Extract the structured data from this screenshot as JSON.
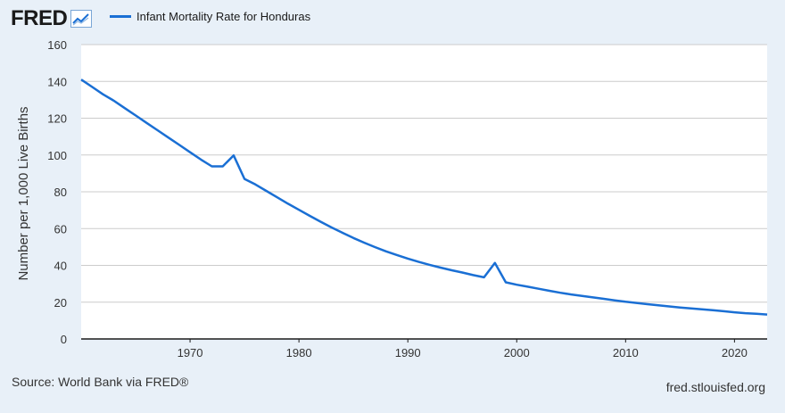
{
  "header": {
    "logo": "FRED",
    "legend_label": "Infant Mortality Rate for Honduras"
  },
  "footer": {
    "source": "Source: World Bank via FRED®",
    "site": "fred.stlouisfed.org"
  },
  "colors": {
    "background": "#e8f0f8",
    "plot_background": "#ffffff",
    "series": "#1a6fd4",
    "grid": "#cccccc"
  },
  "chart_data": {
    "type": "line",
    "title": "",
    "xlabel": "",
    "ylabel": "Number per 1,000 Live Births",
    "xlim": [
      1960,
      2023
    ],
    "ylim": [
      0,
      160
    ],
    "yticks": [
      0,
      20,
      40,
      60,
      80,
      100,
      120,
      140,
      160
    ],
    "xticks": [
      1970,
      1980,
      1990,
      2000,
      2010,
      2020
    ],
    "grid": true,
    "legend": "top-left",
    "series": [
      {
        "name": "Infant Mortality Rate for Honduras",
        "x": [
          1960,
          1961,
          1962,
          1963,
          1964,
          1965,
          1966,
          1967,
          1968,
          1969,
          1970,
          1971,
          1972,
          1973,
          1974,
          1975,
          1976,
          1977,
          1978,
          1979,
          1980,
          1981,
          1982,
          1983,
          1984,
          1985,
          1986,
          1987,
          1988,
          1989,
          1990,
          1991,
          1992,
          1993,
          1994,
          1995,
          1996,
          1997,
          1998,
          1999,
          2000,
          2001,
          2002,
          2003,
          2004,
          2005,
          2006,
          2007,
          2008,
          2009,
          2010,
          2011,
          2012,
          2013,
          2014,
          2015,
          2016,
          2017,
          2018,
          2019,
          2020,
          2021,
          2022,
          2023
        ],
        "values": [
          141,
          137,
          133,
          129.5,
          125.5,
          121.5,
          117.5,
          113.5,
          109.5,
          105.5,
          101.5,
          97.5,
          93.8,
          93.8,
          99.8,
          87,
          84,
          80.5,
          77,
          73.5,
          70.2,
          66.9,
          63.7,
          60.6,
          57.7,
          54.9,
          52.3,
          49.9,
          47.6,
          45.6,
          43.7,
          41.9,
          40.3,
          38.8,
          37.4,
          36.1,
          34.7,
          33.5,
          41.3,
          30.8,
          29.5,
          28.4,
          27.3,
          26.2,
          25.1,
          24.2,
          23.4,
          22.6,
          21.8,
          21.0,
          20.2,
          19.6,
          18.9,
          18.3,
          17.7,
          17.1,
          16.6,
          16.1,
          15.6,
          15.1,
          14.5,
          14.0,
          13.7,
          13.3
        ]
      }
    ]
  }
}
